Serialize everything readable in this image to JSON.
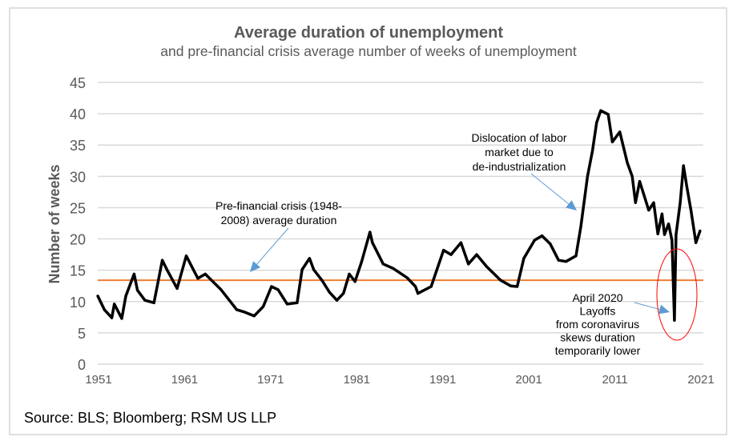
{
  "chart_data": {
    "type": "line",
    "title": "Average duration of unemployment",
    "subtitle": "and pre-financial crisis average number of weeks of unemployment",
    "ylabel": "Number of weeks",
    "xlabel": "",
    "ylim": [
      0,
      45
    ],
    "yticks": [
      0,
      5,
      10,
      15,
      20,
      25,
      30,
      35,
      40,
      45
    ],
    "xtick_labels": [
      "1951",
      "1961",
      "1971",
      "1981",
      "1991",
      "2001",
      "2011",
      "2021"
    ],
    "xlim": [
      1950.6,
      2023.8
    ],
    "grid": true,
    "legend": "none",
    "source": "Source: BLS; Bloomberg; RSM US LLP",
    "colors": {
      "series": "#000000",
      "average": "#ED7D31",
      "arrow": "#5B9BD5",
      "highlight": "#FF0000",
      "grid": "#D9D9D9",
      "title": "#595959"
    },
    "series": [
      {
        "x": [
          1950.6,
          1951.4,
          1952.3,
          1952.6,
          1953.5,
          1954.0,
          1955.0,
          1955.4,
          1956.3,
          1957.4,
          1958.4,
          1959.0,
          1960.2,
          1961.3,
          1962.7,
          1963.6,
          1964.5,
          1965.5,
          1967.4,
          1968.4,
          1969.5,
          1970.6,
          1971.6,
          1972.4,
          1973.5,
          1974.7,
          1975.3,
          1976.2,
          1976.7,
          1977.7,
          1978.6,
          1979.5,
          1980.3,
          1981.0,
          1981.7,
          1982.5,
          1983.5,
          1983.8,
          1985.1,
          1986.3,
          1988.0,
          1989.0,
          1989.3,
          1990.9,
          1992.4,
          1993.3,
          1994.5,
          1995.4,
          1996.4,
          1997.6,
          1999.3,
          2000.5,
          2001.3,
          2002.1,
          2003.4,
          2004.3,
          2005.3,
          2006.3,
          2007.2,
          2008.4,
          2009.0,
          2009.8,
          2010.4,
          2010.9,
          2011.4,
          2012.3,
          2012.8,
          2013.7,
          2014.6,
          2015.2,
          2015.6,
          2016.1,
          2017.2,
          2017.8,
          2018.3,
          2018.8,
          2019.1,
          2019.6,
          2020.0,
          2020.3,
          2020.5,
          2021.0,
          2021.4,
          2021.8,
          2022.3,
          2022.9,
          2023.4
        ],
        "values": [
          10.9,
          8.7,
          7.4,
          9.6,
          7.3,
          10.9,
          14.4,
          11.8,
          10.2,
          9.8,
          16.6,
          15.0,
          12.1,
          17.3,
          13.7,
          14.4,
          13.2,
          11.9,
          8.7,
          8.3,
          7.7,
          9.2,
          12.4,
          11.9,
          9.6,
          9.8,
          15.1,
          16.9,
          15.1,
          13.4,
          11.5,
          10.2,
          11.3,
          14.4,
          13.2,
          16.4,
          21.1,
          19.4,
          16.0,
          15.3,
          13.8,
          12.4,
          11.3,
          12.4,
          18.2,
          17.5,
          19.4,
          16.0,
          17.5,
          15.6,
          13.4,
          12.5,
          12.4,
          16.9,
          19.8,
          20.5,
          19.2,
          16.6,
          16.4,
          17.3,
          22.0,
          30.0,
          34.1,
          38.6,
          40.5,
          39.9,
          35.5,
          37.1,
          32.2,
          30.0,
          25.8,
          29.2,
          24.6,
          25.8,
          20.8,
          24.0,
          20.7,
          22.4,
          19.8,
          7.0,
          20.7,
          25.8,
          31.7,
          28.4,
          24.6,
          19.4,
          21.3
        ]
      },
      {
        "type": "hline",
        "value": 13.4
      }
    ],
    "annotations": [
      {
        "lines": [
          "Pre-financial crisis (1948-",
          "2008) average duration"
        ]
      },
      {
        "lines": [
          "Dislocation of labor",
          "market due to",
          "de-industrialization"
        ]
      },
      {
        "lines": [
          "April 2020",
          "Layoffs",
          "from coronavirus",
          "skews duration",
          "temporarily lower"
        ]
      }
    ]
  }
}
